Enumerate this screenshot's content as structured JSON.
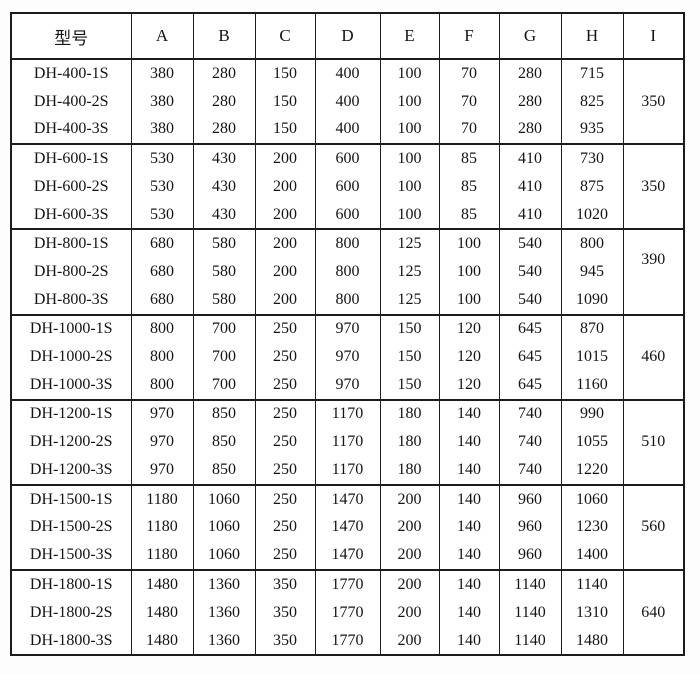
{
  "colors": {
    "border": "#1c1c1c",
    "text": "#141414",
    "background": "#ffffff"
  },
  "chart_data": {
    "type": "table",
    "title": "",
    "columns": [
      "型号",
      "A",
      "B",
      "C",
      "D",
      "E",
      "F",
      "G",
      "H",
      "I"
    ],
    "merged_column": "I",
    "groups": [
      {
        "i": "350",
        "rows": [
          {
            "model": "DH-400-1S",
            "values": [
              "380",
              "280",
              "150",
              "400",
              "100",
              "70",
              "280",
              "715"
            ]
          },
          {
            "model": "DH-400-2S",
            "values": [
              "380",
              "280",
              "150",
              "400",
              "100",
              "70",
              "280",
              "825"
            ]
          },
          {
            "model": "DH-400-3S",
            "values": [
              "380",
              "280",
              "150",
              "400",
              "100",
              "70",
              "280",
              "935"
            ]
          }
        ]
      },
      {
        "i": "350",
        "rows": [
          {
            "model": "DH-600-1S",
            "values": [
              "530",
              "430",
              "200",
              "600",
              "100",
              "85",
              "410",
              "730"
            ]
          },
          {
            "model": "DH-600-2S",
            "values": [
              "530",
              "430",
              "200",
              "600",
              "100",
              "85",
              "410",
              "875"
            ]
          },
          {
            "model": "DH-600-3S",
            "values": [
              "530",
              "430",
              "200",
              "600",
              "100",
              "85",
              "410",
              "1020"
            ]
          }
        ]
      },
      {
        "i": "390",
        "rows": [
          {
            "model": "DH-800-1S",
            "values": [
              "680",
              "580",
              "200",
              "800",
              "125",
              "100",
              "540",
              "800"
            ]
          },
          {
            "model": "DH-800-2S",
            "values": [
              "680",
              "580",
              "200",
              "800",
              "125",
              "100",
              "540",
              "945"
            ]
          },
          {
            "model": "DH-800-3S",
            "values": [
              "680",
              "580",
              "200",
              "800",
              "125",
              "100",
              "540",
              "1090"
            ]
          }
        ]
      },
      {
        "i": "460",
        "rows": [
          {
            "model": "DH-1000-1S",
            "values": [
              "800",
              "700",
              "250",
              "970",
              "150",
              "120",
              "645",
              "870"
            ]
          },
          {
            "model": "DH-1000-2S",
            "values": [
              "800",
              "700",
              "250",
              "970",
              "150",
              "120",
              "645",
              "1015"
            ]
          },
          {
            "model": "DH-1000-3S",
            "values": [
              "800",
              "700",
              "250",
              "970",
              "150",
              "120",
              "645",
              "1160"
            ]
          }
        ]
      },
      {
        "i": "510",
        "rows": [
          {
            "model": "DH-1200-1S",
            "values": [
              "970",
              "850",
              "250",
              "1170",
              "180",
              "140",
              "740",
              "990"
            ]
          },
          {
            "model": "DH-1200-2S",
            "values": [
              "970",
              "850",
              "250",
              "1170",
              "180",
              "140",
              "740",
              "1055"
            ]
          },
          {
            "model": "DH-1200-3S",
            "values": [
              "970",
              "850",
              "250",
              "1170",
              "180",
              "140",
              "740",
              "1220"
            ]
          }
        ]
      },
      {
        "i": "560",
        "rows": [
          {
            "model": "DH-1500-1S",
            "values": [
              "1180",
              "1060",
              "250",
              "1470",
              "200",
              "140",
              "960",
              "1060"
            ]
          },
          {
            "model": "DH-1500-2S",
            "values": [
              "1180",
              "1060",
              "250",
              "1470",
              "200",
              "140",
              "960",
              "1230"
            ]
          },
          {
            "model": "DH-1500-3S",
            "values": [
              "1180",
              "1060",
              "250",
              "1470",
              "200",
              "140",
              "960",
              "1400"
            ]
          }
        ]
      },
      {
        "i": "640",
        "rows": [
          {
            "model": "DH-1800-1S",
            "values": [
              "1480",
              "1360",
              "350",
              "1770",
              "200",
              "140",
              "1140",
              "1140"
            ]
          },
          {
            "model": "DH-1800-2S",
            "values": [
              "1480",
              "1360",
              "350",
              "1770",
              "200",
              "140",
              "1140",
              "1310"
            ]
          },
          {
            "model": "DH-1800-3S",
            "values": [
              "1480",
              "1360",
              "350",
              "1770",
              "200",
              "140",
              "1140",
              "1480"
            ]
          }
        ]
      }
    ]
  }
}
